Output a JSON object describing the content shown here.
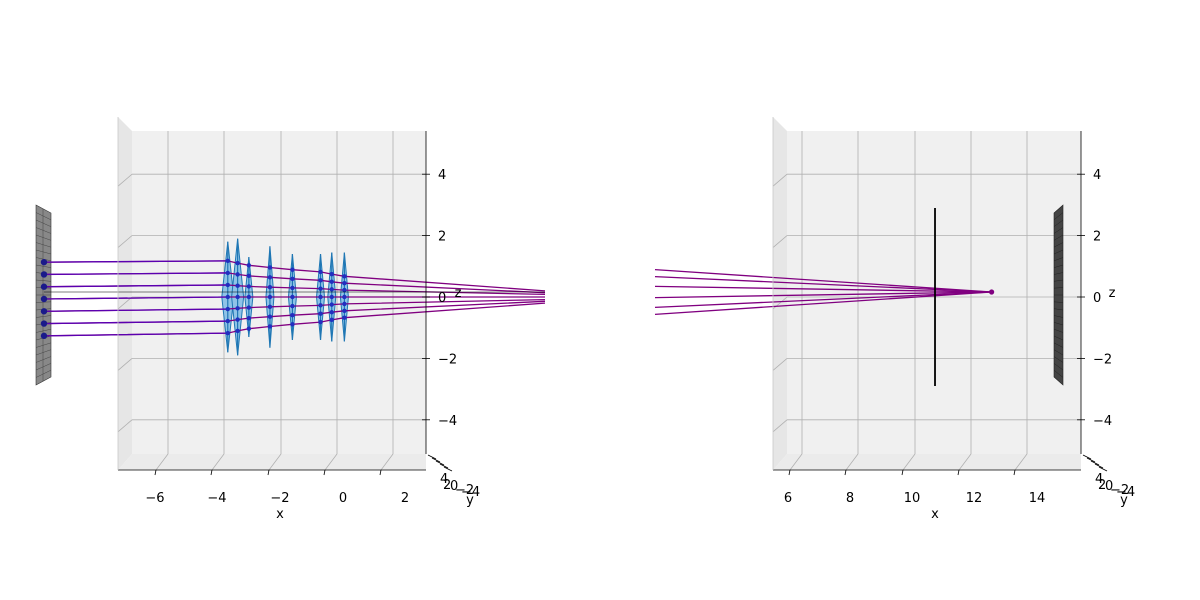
{
  "figure": {
    "background": "#ffffff",
    "pane_color": "#f0f0f0",
    "grid_color": "#b0b0b0",
    "ray_color": "#800080",
    "ray_color_source": "#5a00b0",
    "lens_color": "#1f77b4",
    "sensor_color": "#888888",
    "detector_color": "#444444",
    "stop_color": "#000000"
  },
  "chart_data": [
    {
      "type": "line",
      "title": "",
      "view": "side (x–z)",
      "xlabel": "x",
      "ylabel": "y",
      "zlabel": "z",
      "xlim": [
        -7.2,
        3.2
      ],
      "zlim": [
        -5.5,
        5.2
      ],
      "x_ticks": [
        "−6",
        "−4",
        "−2",
        "0",
        "2"
      ],
      "z_ticks": [
        "4",
        "2",
        "0",
        "−2",
        "−4"
      ],
      "y_ticks": [
        "4",
        "2",
        "0",
        "−2",
        "−4"
      ],
      "grid": true,
      "legend": "none",
      "object_plane": {
        "x": -10.3,
        "z_range": [
          -3.0,
          2.9
        ],
        "icon": "grid-plane"
      },
      "ray_heights": [
        1.2,
        0.8,
        0.4,
        0.0,
        -0.4,
        -0.8,
        -1.2
      ],
      "lenses": [
        {
          "x": -4.1,
          "half_height": 1.8
        },
        {
          "x": -3.75,
          "half_height": 1.9
        },
        {
          "x": -3.35,
          "half_height": 1.3
        },
        {
          "x": -2.6,
          "half_height": 1.65
        },
        {
          "x": -1.8,
          "half_height": 1.4
        },
        {
          "x": -0.8,
          "half_height": 1.4
        },
        {
          "x": -0.4,
          "half_height": 1.45
        },
        {
          "x": 0.05,
          "half_height": 1.45
        }
      ]
    },
    {
      "type": "line",
      "title": "",
      "view": "side (x–z)",
      "xlabel": "x",
      "ylabel": "y",
      "zlabel": "z",
      "xlim": [
        5.5,
        15.5
      ],
      "zlim": [
        -5.5,
        5.2
      ],
      "x_ticks": [
        "6",
        "8",
        "10",
        "12",
        "14"
      ],
      "z_ticks": [
        "4",
        "2",
        "0",
        "−2",
        "−4"
      ],
      "y_ticks": [
        "4",
        "2",
        "0",
        "−2",
        "−4"
      ],
      "grid": true,
      "legend": "none",
      "ray_heights_entry": [
        0.8,
        0.55,
        0.2,
        -0.2,
        -0.55,
        -0.8
      ],
      "stop": {
        "x": 10.7,
        "z_range": [
          -2.9,
          2.9
        ]
      },
      "focus": {
        "x": 12.7,
        "z": 0.0
      },
      "detector": {
        "x": 15.3,
        "z_range": [
          -2.9,
          2.9
        ]
      }
    }
  ]
}
